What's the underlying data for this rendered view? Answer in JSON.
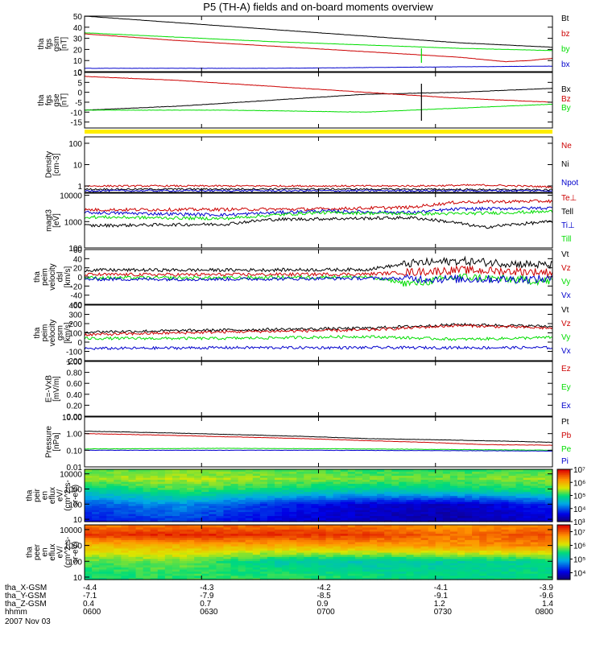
{
  "title": "P5 (TH-A) fields and on-board moments overview",
  "chart_data": [
    {
      "type": "line",
      "ylabel": [
        "tha",
        "fgs",
        "gsm",
        "[nT]"
      ],
      "ylim": [
        0,
        50
      ],
      "ticks": [
        0,
        10,
        20,
        30,
        40,
        50
      ],
      "scale": "linear",
      "grid": false,
      "legend_position": "right",
      "series": [
        {
          "name": "Bt",
          "color": "#000000",
          "x": [
            0,
            0.2,
            0.4,
            0.6,
            0.8,
            0.95,
            1.0
          ],
          "values": [
            50,
            44,
            38,
            32,
            26,
            23,
            22
          ]
        },
        {
          "name": "bz",
          "color": "#cc0000",
          "x": [
            0,
            0.2,
            0.4,
            0.6,
            0.8,
            0.9,
            0.95,
            1.0
          ],
          "values": [
            34,
            28,
            23,
            18,
            13,
            9,
            10,
            12
          ]
        },
        {
          "name": "by",
          "color": "#00dd00",
          "x": [
            0,
            0.2,
            0.4,
            0.6,
            0.8,
            1.0
          ],
          "values": [
            35,
            31,
            27,
            24,
            21,
            19
          ]
        },
        {
          "name": "bx",
          "color": "#0000cc",
          "x": [
            0,
            0.4,
            0.7,
            1.0
          ],
          "values": [
            3,
            3,
            4,
            5
          ]
        }
      ]
    },
    {
      "type": "line",
      "ylabel": [
        "tha",
        "fgs",
        "gse",
        "[nT]"
      ],
      "ylim": [
        -18,
        10
      ],
      "ticks": [
        -15,
        -10,
        -5,
        0,
        5,
        10
      ],
      "scale": "linear",
      "grid": false,
      "legend_position": "right",
      "series": [
        {
          "name": "Bx",
          "color": "#000000",
          "x": [
            0,
            0.2,
            0.4,
            0.6,
            0.8,
            1.0
          ],
          "values": [
            -9,
            -7,
            -4,
            -1,
            0,
            2
          ]
        },
        {
          "name": "Bz",
          "color": "#cc0000",
          "x": [
            0,
            0.2,
            0.4,
            0.6,
            0.8,
            1.0
          ],
          "values": [
            8,
            6,
            3,
            0,
            -3,
            -5
          ]
        },
        {
          "name": "By",
          "color": "#00dd00",
          "x": [
            0,
            0.3,
            0.6,
            0.8,
            1.0
          ],
          "values": [
            -9,
            -9,
            -10,
            -8,
            -6
          ]
        }
      ]
    },
    {
      "type": "line",
      "ylabel": [
        "Density",
        "[cm-3]"
      ],
      "ylim": [
        0.5,
        200
      ],
      "ticks": [
        1,
        10,
        100
      ],
      "scale": "log",
      "grid": false,
      "legend_position": "right",
      "series": [
        {
          "name": "Ne",
          "color": "#cc0000",
          "x": [
            0,
            0.4,
            0.7,
            0.85,
            1.0
          ],
          "values": [
            1.0,
            1.0,
            1.0,
            1.1,
            0.9
          ]
        },
        {
          "name": "Ni",
          "color": "#000000",
          "x": [
            0,
            0.4,
            0.7,
            1.0
          ],
          "values": [
            0.7,
            0.72,
            0.7,
            0.65
          ]
        },
        {
          "name": "Npot",
          "color": "#0000cc",
          "x": [
            0,
            0.5,
            1.0
          ],
          "values": [
            0.6,
            0.6,
            0.6
          ]
        }
      ]
    },
    {
      "type": "line",
      "ylabel": [
        "magt3",
        "[eV]"
      ],
      "ylim": [
        100,
        12000
      ],
      "ticks": [
        100,
        1000,
        10000
      ],
      "scale": "log",
      "grid": false,
      "legend_position": "right",
      "series": [
        {
          "name": "Te⊥",
          "color": "#cc0000",
          "x": [
            0,
            0.3,
            0.5,
            0.7,
            0.8,
            1.0
          ],
          "values": [
            2800,
            2900,
            3000,
            3500,
            5500,
            6000
          ]
        },
        {
          "name": "Tell",
          "color": "#000000",
          "x": [
            0,
            0.3,
            0.4,
            0.7,
            0.85,
            1.0
          ],
          "values": [
            700,
            800,
            1200,
            1400,
            600,
            1000
          ]
        },
        {
          "name": "Ti⊥",
          "color": "#0000cc",
          "x": [
            0,
            0.3,
            0.5,
            0.7,
            0.8,
            1.0
          ],
          "values": [
            2200,
            1800,
            2500,
            2200,
            3000,
            3300
          ]
        },
        {
          "name": "Till",
          "color": "#00dd00",
          "x": [
            0,
            0.3,
            0.5,
            0.7,
            0.8,
            1.0
          ],
          "values": [
            1500,
            1300,
            2200,
            2000,
            2000,
            2400
          ]
        }
      ]
    },
    {
      "type": "line",
      "ylabel": [
        "tha",
        "peim",
        "velocity",
        "dsl",
        "[km/s]"
      ],
      "ylim": [
        -60,
        60
      ],
      "ticks": [
        -60,
        -40,
        -20,
        0,
        20,
        40,
        60
      ],
      "scale": "linear",
      "grid": false,
      "legend_position": "right",
      "series": [
        {
          "name": "Vt",
          "color": "#000000",
          "x": [
            0,
            0.3,
            0.6,
            0.7,
            0.8,
            1.0
          ],
          "values": [
            15,
            15,
            16,
            30,
            35,
            25
          ]
        },
        {
          "name": "Vz",
          "color": "#cc0000",
          "x": [
            0,
            0.3,
            0.6,
            0.8,
            1.0
          ],
          "values": [
            5,
            5,
            6,
            15,
            10
          ]
        },
        {
          "name": "Vy",
          "color": "#00dd00",
          "x": [
            0,
            0.3,
            0.6,
            0.7,
            0.8,
            1.0
          ],
          "values": [
            -2,
            -2,
            0,
            -15,
            0,
            -10
          ]
        },
        {
          "name": "Vx",
          "color": "#0000cc",
          "x": [
            0,
            0.3,
            0.6,
            0.8,
            1.0
          ],
          "values": [
            -5,
            -5,
            -3,
            -5,
            -5
          ]
        }
      ]
    },
    {
      "type": "line",
      "ylabel": [
        "tha",
        "peim",
        "velocity",
        "gsm",
        "[km/s]"
      ],
      "ylim": [
        -200,
        400
      ],
      "ticks": [
        -200,
        -100,
        0,
        100,
        200,
        300,
        400
      ],
      "scale": "linear",
      "grid": false,
      "legend_position": "right",
      "series": [
        {
          "name": "Vt",
          "color": "#000000",
          "x": [
            0,
            0.3,
            0.6,
            0.8,
            1.0
          ],
          "values": [
            110,
            130,
            150,
            190,
            170
          ]
        },
        {
          "name": "Vz",
          "color": "#cc0000",
          "x": [
            0,
            0.3,
            0.6,
            0.8,
            1.0
          ],
          "values": [
            80,
            110,
            130,
            180,
            150
          ]
        },
        {
          "name": "Vy",
          "color": "#00dd00",
          "x": [
            0,
            0.3,
            0.6,
            0.8,
            1.0
          ],
          "values": [
            40,
            40,
            60,
            30,
            50
          ]
        },
        {
          "name": "Vx",
          "color": "#0000cc",
          "x": [
            0,
            0.3,
            0.6,
            0.8,
            1.0
          ],
          "values": [
            -70,
            -60,
            -60,
            -60,
            -60
          ]
        }
      ]
    },
    {
      "type": "line",
      "ylabel": [
        "E=-VxB",
        "[mV/m]"
      ],
      "ylim": [
        0,
        1
      ],
      "ticks": [
        0,
        0.2,
        0.4,
        0.6,
        0.8,
        1.0
      ],
      "tick_labels": [
        "0.00",
        "0.20",
        "0.40",
        "0.60",
        "0.80",
        "1.00"
      ],
      "scale": "linear",
      "grid": false,
      "legend_position": "right",
      "series": [
        {
          "name": "Ez",
          "color": "#cc0000",
          "x": [],
          "values": []
        },
        {
          "name": "Ey",
          "color": "#00dd00",
          "x": [],
          "values": []
        },
        {
          "name": "Ex",
          "color": "#0000cc",
          "x": [],
          "values": []
        }
      ]
    },
    {
      "type": "line",
      "ylabel": [
        "Pressure",
        "[nPa]"
      ],
      "ylim": [
        0.01,
        10
      ],
      "ticks": [
        0.01,
        0.1,
        1,
        10
      ],
      "tick_labels": [
        "0.01",
        "0.10",
        "1.00",
        "10.00"
      ],
      "scale": "log",
      "grid": false,
      "legend_position": "right",
      "series": [
        {
          "name": "Pt",
          "color": "#000000",
          "x": [
            0,
            0.3,
            0.6,
            1.0
          ],
          "values": [
            1.4,
            0.9,
            0.5,
            0.3
          ]
        },
        {
          "name": "Pb",
          "color": "#cc0000",
          "x": [
            0,
            0.3,
            0.6,
            0.85,
            1.0
          ],
          "values": [
            1.0,
            0.65,
            0.38,
            0.22,
            0.2
          ]
        },
        {
          "name": "Pe",
          "color": "#00dd00",
          "x": [
            0,
            0.3,
            0.6,
            1.0
          ],
          "values": [
            0.12,
            0.13,
            0.12,
            0.1
          ]
        },
        {
          "name": "Pi",
          "color": "#0000cc",
          "x": [
            0,
            0.5,
            1.0
          ],
          "values": [
            0.1,
            0.1,
            0.09
          ]
        }
      ]
    },
    {
      "type": "heatmap",
      "ylabel": [
        "tha",
        "peir",
        "en",
        "eflux",
        "eV/",
        "(cm^2-s-",
        "sr-eV)"
      ],
      "ylim": [
        7,
        20000
      ],
      "ticks": [
        10,
        100,
        1000,
        10000
      ],
      "scale": "log",
      "colorbar": {
        "min_exp": 3,
        "max_exp": 7,
        "labels": [
          "10³",
          "10⁴",
          "10⁵",
          "10⁶",
          "10⁷"
        ]
      },
      "time_breaks": [
        0,
        0.2,
        0.4,
        0.6,
        0.8,
        1.0
      ],
      "energy_levels": [
        {
          "e": 10,
          "v": [
            3.7,
            3.9,
            3.6,
            3.4,
            3.3,
            3.5
          ]
        },
        {
          "e": 100,
          "v": [
            4.0,
            4.3,
            3.8,
            3.5,
            3.4,
            3.8
          ]
        },
        {
          "e": 1000,
          "v": [
            4.8,
            5.2,
            5.0,
            4.8,
            4.9,
            5.1
          ]
        },
        {
          "e": 5000,
          "v": [
            5.4,
            5.5,
            5.4,
            5.3,
            5.3,
            5.4
          ]
        },
        {
          "e": 20000,
          "v": [
            5.2,
            5.3,
            5.2,
            5.1,
            5.1,
            5.2
          ]
        }
      ]
    },
    {
      "type": "heatmap",
      "ylabel": [
        "tha",
        "peer",
        "en",
        "eflux",
        "eV/",
        "(cm^2-s-",
        "sr-eV)"
      ],
      "ylim": [
        7,
        20000
      ],
      "ticks": [
        10,
        100,
        1000,
        10000
      ],
      "scale": "log",
      "colorbar": {
        "min_exp": 3.5,
        "max_exp": 7.5,
        "labels": [
          "10⁴",
          "10⁵",
          "10⁶",
          "10⁷"
        ]
      },
      "time_breaks": [
        0,
        0.2,
        0.4,
        0.6,
        0.8,
        1.0
      ],
      "energy_levels": [
        {
          "e": 10,
          "v": [
            5.5,
            5.6,
            5.6,
            5.5,
            5.4,
            5.5
          ]
        },
        {
          "e": 100,
          "v": [
            5.7,
            5.8,
            5.3,
            5.2,
            5.3,
            5.4
          ]
        },
        {
          "e": 1000,
          "v": [
            6.4,
            6.5,
            6.5,
            6.6,
            6.7,
            6.8
          ]
        },
        {
          "e": 5000,
          "v": [
            7.2,
            7.3,
            7.3,
            7.2,
            6.9,
            7.1
          ]
        },
        {
          "e": 20000,
          "v": [
            6.8,
            6.9,
            6.9,
            6.8,
            6.6,
            6.8
          ]
        }
      ]
    }
  ],
  "time_axis": {
    "labels": [
      "tha_X-GSM",
      "tha_Y-GSM",
      "tha_Z-GSM",
      "hhmm"
    ],
    "date": "2007 Nov 03",
    "ticks": [
      {
        "x": "-4.4",
        "y": "-7.1",
        "z": "0.4",
        "t": "0600"
      },
      {
        "x": "-4.3",
        "y": "-7.9",
        "z": "0.7",
        "t": "0630"
      },
      {
        "x": "-4.2",
        "y": "-8.5",
        "z": "0.9",
        "t": "0700"
      },
      {
        "x": "-4.1",
        "y": "-9.1",
        "z": "1.2",
        "t": "0730"
      },
      {
        "x": "-3.9",
        "y": "-9.6",
        "z": "1.4",
        "t": "0800"
      }
    ]
  }
}
